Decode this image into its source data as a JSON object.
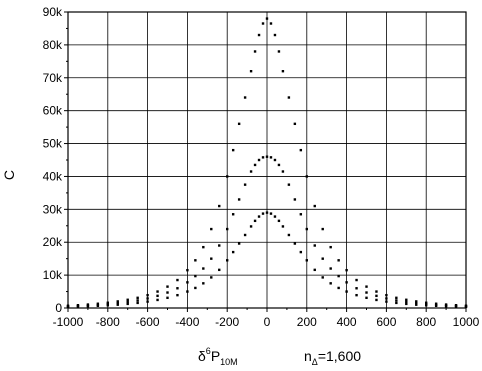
{
  "chart_data": {
    "type": "scatter",
    "title": "",
    "ylabel": "C",
    "xlabel": {
      "base": "δ",
      "sup": "6",
      "main": "P",
      "sub": "10M"
    },
    "annotation": {
      "base": "n",
      "sub": "Δ",
      "rest": "=1,600"
    },
    "xlim": [
      -1000,
      1000
    ],
    "ylim": [
      0,
      90000
    ],
    "x_ticks": [
      -1000,
      -800,
      -600,
      -400,
      -200,
      0,
      200,
      400,
      600,
      800,
      1000
    ],
    "y_ticks": [
      0,
      10000,
      20000,
      30000,
      40000,
      50000,
      60000,
      70000,
      80000,
      90000
    ],
    "y_tick_labels": [
      "0",
      "10k",
      "20k",
      "30k",
      "40k",
      "50k",
      "60k",
      "70k",
      "80k",
      "90k"
    ],
    "grid": true,
    "series": [
      {
        "points": [
          [
            -1000,
            700
          ],
          [
            -950,
            850
          ],
          [
            -900,
            1050
          ],
          [
            -850,
            1300
          ],
          [
            -800,
            1600
          ],
          [
            -750,
            2000
          ],
          [
            -700,
            2500
          ],
          [
            -650,
            3100
          ],
          [
            -600,
            3900
          ],
          [
            -550,
            5000
          ],
          [
            -500,
            6500
          ],
          [
            -450,
            8500
          ],
          [
            -400,
            11500
          ],
          [
            -360,
            14500
          ],
          [
            -320,
            18500
          ],
          [
            -280,
            24000
          ],
          [
            -240,
            31000
          ],
          [
            -200,
            40000
          ],
          [
            -170,
            48000
          ],
          [
            -140,
            56000
          ],
          [
            -110,
            64000
          ],
          [
            -80,
            72000
          ],
          [
            -60,
            78000
          ],
          [
            -40,
            83000
          ],
          [
            -20,
            86500
          ],
          [
            0,
            88000
          ],
          [
            20,
            86500
          ],
          [
            40,
            83000
          ],
          [
            60,
            78000
          ],
          [
            80,
            72000
          ],
          [
            110,
            64000
          ],
          [
            140,
            56000
          ],
          [
            170,
            48000
          ],
          [
            200,
            40000
          ],
          [
            240,
            31000
          ],
          [
            280,
            24000
          ],
          [
            320,
            18500
          ],
          [
            360,
            14500
          ],
          [
            400,
            11500
          ],
          [
            450,
            8500
          ],
          [
            500,
            6500
          ],
          [
            550,
            5000
          ],
          [
            600,
            3900
          ],
          [
            650,
            3100
          ],
          [
            700,
            2500
          ],
          [
            750,
            2000
          ],
          [
            800,
            1600
          ],
          [
            850,
            1300
          ],
          [
            900,
            1050
          ],
          [
            950,
            850
          ],
          [
            1000,
            700
          ]
        ]
      },
      {
        "points": [
          [
            -1000,
            500
          ],
          [
            -950,
            620
          ],
          [
            -900,
            770
          ],
          [
            -850,
            950
          ],
          [
            -800,
            1200
          ],
          [
            -750,
            1500
          ],
          [
            -700,
            1850
          ],
          [
            -650,
            2300
          ],
          [
            -600,
            2900
          ],
          [
            -550,
            3700
          ],
          [
            -500,
            4700
          ],
          [
            -450,
            6000
          ],
          [
            -400,
            7800
          ],
          [
            -360,
            9700
          ],
          [
            -320,
            12000
          ],
          [
            -280,
            15000
          ],
          [
            -240,
            19000
          ],
          [
            -200,
            24000
          ],
          [
            -170,
            28500
          ],
          [
            -140,
            33000
          ],
          [
            -110,
            37500
          ],
          [
            -80,
            41500
          ],
          [
            -60,
            43500
          ],
          [
            -40,
            45000
          ],
          [
            -20,
            45800
          ],
          [
            0,
            46000
          ],
          [
            20,
            45800
          ],
          [
            40,
            45000
          ],
          [
            60,
            43500
          ],
          [
            80,
            41500
          ],
          [
            110,
            37500
          ],
          [
            140,
            33000
          ],
          [
            170,
            28500
          ],
          [
            200,
            24000
          ],
          [
            240,
            19000
          ],
          [
            280,
            15000
          ],
          [
            320,
            12000
          ],
          [
            360,
            9700
          ],
          [
            400,
            7800
          ],
          [
            450,
            6000
          ],
          [
            500,
            4700
          ],
          [
            550,
            3700
          ],
          [
            600,
            2900
          ],
          [
            650,
            2300
          ],
          [
            700,
            1850
          ],
          [
            750,
            1500
          ],
          [
            800,
            1200
          ],
          [
            850,
            950
          ],
          [
            900,
            770
          ],
          [
            950,
            620
          ],
          [
            1000,
            500
          ]
        ]
      },
      {
        "points": [
          [
            -1000,
            350
          ],
          [
            -950,
            430
          ],
          [
            -900,
            530
          ],
          [
            -850,
            660
          ],
          [
            -800,
            820
          ],
          [
            -750,
            1000
          ],
          [
            -700,
            1250
          ],
          [
            -650,
            1550
          ],
          [
            -600,
            1950
          ],
          [
            -550,
            2450
          ],
          [
            -500,
            3100
          ],
          [
            -450,
            3900
          ],
          [
            -400,
            5000
          ],
          [
            -360,
            6100
          ],
          [
            -320,
            7500
          ],
          [
            -280,
            9300
          ],
          [
            -240,
            11600
          ],
          [
            -200,
            14500
          ],
          [
            -170,
            17000
          ],
          [
            -140,
            19600
          ],
          [
            -110,
            22200
          ],
          [
            -80,
            24800
          ],
          [
            -60,
            26500
          ],
          [
            -40,
            27800
          ],
          [
            -20,
            28700
          ],
          [
            0,
            29000
          ],
          [
            20,
            28700
          ],
          [
            40,
            27800
          ],
          [
            60,
            26500
          ],
          [
            80,
            24800
          ],
          [
            110,
            22200
          ],
          [
            140,
            19600
          ],
          [
            170,
            17000
          ],
          [
            200,
            14500
          ],
          [
            240,
            11600
          ],
          [
            280,
            9300
          ],
          [
            320,
            7500
          ],
          [
            360,
            6100
          ],
          [
            400,
            5000
          ],
          [
            450,
            3900
          ],
          [
            500,
            3100
          ],
          [
            550,
            2450
          ],
          [
            600,
            1950
          ],
          [
            650,
            1550
          ],
          [
            700,
            1250
          ],
          [
            750,
            1000
          ],
          [
            800,
            820
          ],
          [
            850,
            660
          ],
          [
            900,
            530
          ],
          [
            950,
            430
          ],
          [
            1000,
            350
          ]
        ]
      }
    ],
    "colors": {
      "points": "#000000",
      "grid": "#000000"
    }
  }
}
